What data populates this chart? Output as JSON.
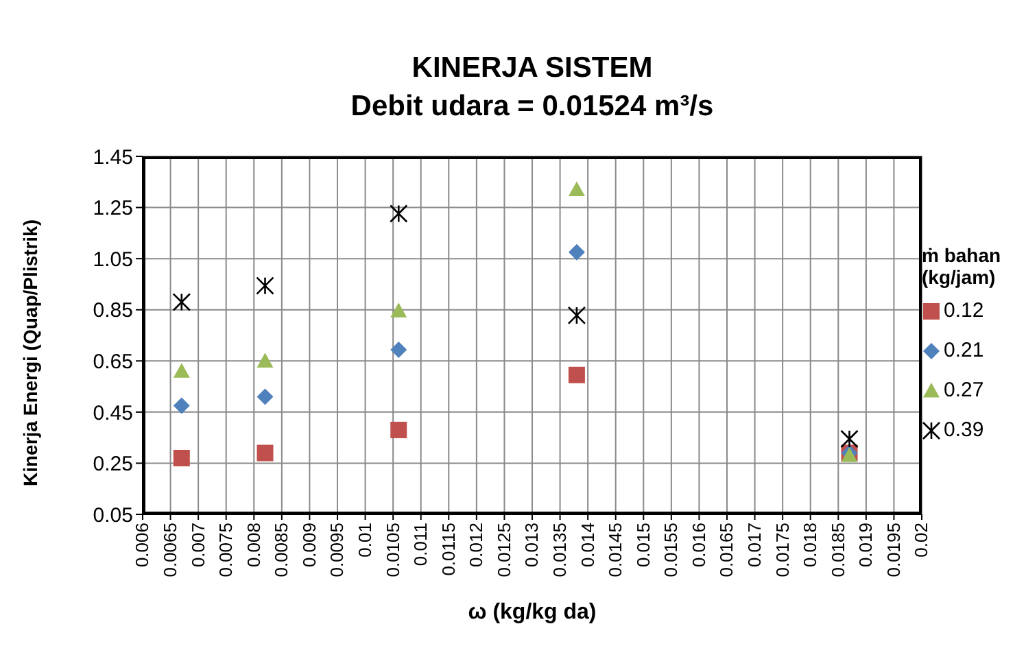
{
  "chart_data": {
    "type": "scatter",
    "title": "KINERJA SISTEM",
    "subtitle": "Debit udara = 0.01524 m³/s",
    "xlabel": "ω (kg/kg da)",
    "ylabel": "Kinerja Energi (Quap/Plistrik)",
    "legend_title": "ṁ bahan (kg/jam)",
    "legend": "right",
    "grid": true,
    "x": [
      0.0067,
      0.0082,
      0.0106,
      0.0138,
      0.0187
    ],
    "series": [
      {
        "name": "0.12",
        "color": "#c0504d",
        "marker": "square",
        "values": [
          0.27,
          0.29,
          0.38,
          0.595,
          0.29
        ]
      },
      {
        "name": "0.21",
        "color": "#4f81bd",
        "marker": "diamond",
        "values": [
          0.475,
          0.51,
          0.694,
          1.075,
          0.29
        ]
      },
      {
        "name": "0.27",
        "color": "#9bbb59",
        "marker": "triangle",
        "values": [
          0.61,
          0.65,
          0.846,
          1.32,
          0.28
        ]
      },
      {
        "name": "0.39",
        "color": "#000000",
        "marker": "cross",
        "values": [
          0.88,
          0.944,
          1.226,
          0.828,
          0.345
        ]
      }
    ],
    "xlim": [
      0.006,
      0.02
    ],
    "xticks": [
      0.006,
      0.0065,
      0.007,
      0.0075,
      0.008,
      0.0085,
      0.009,
      0.0095,
      0.01,
      0.0105,
      0.011,
      0.0115,
      0.012,
      0.0125,
      0.013,
      0.0135,
      0.014,
      0.0145,
      0.015,
      0.0155,
      0.016,
      0.0165,
      0.017,
      0.0175,
      0.018,
      0.0185,
      0.019,
      0.0195,
      0.02
    ],
    "ylim": [
      0.05,
      1.45
    ],
    "yticks": [
      0.05,
      0.25,
      0.45,
      0.65,
      0.85,
      1.05,
      1.25,
      1.45
    ]
  }
}
